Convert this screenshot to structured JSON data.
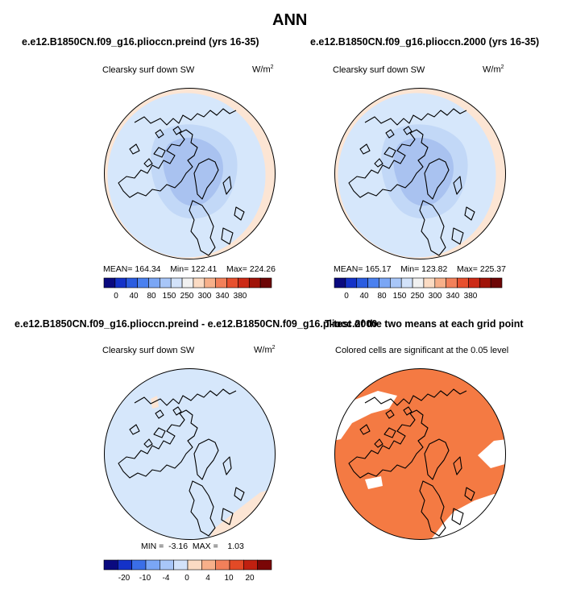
{
  "figure_title": "ANN",
  "colors": {
    "pale_blue": "#d6e7fb",
    "light_blue": "#c2d8f7",
    "mid_blue": "#a9c2f0",
    "peach": "#fce5d4",
    "orange": "#f47a43",
    "coast": "#000000"
  },
  "chart_data": [
    {
      "type": "heatmap",
      "projection": "north polar stereographic",
      "title": "e.e12.B1850CN.f09_g16.plioccn.preind (yrs 16-35)",
      "subtitle": "Clearsky surf down SW",
      "units": "W/m",
      "units_sup": "2",
      "mean_label": "MEAN=",
      "mean": "164.34",
      "min_label": "Min=",
      "min": "122.41",
      "max_label": "Max=",
      "max": "224.26",
      "colorbar_ticks": [
        "0",
        "40",
        "80",
        "150",
        "250",
        "300",
        "340",
        "380"
      ]
    },
    {
      "type": "heatmap",
      "projection": "north polar stereographic",
      "title": "e.e12.B1850CN.f09_g16.plioccn.2000 (yrs 16-35)",
      "subtitle": "Clearsky surf down SW",
      "units": "W/m",
      "units_sup": "2",
      "mean_label": "MEAN=",
      "mean": "165.17",
      "min_label": "Min=",
      "min": "123.82",
      "max_label": "Max=",
      "max": "225.37",
      "colorbar_ticks": [
        "0",
        "40",
        "80",
        "150",
        "250",
        "300",
        "340",
        "380"
      ]
    },
    {
      "type": "heatmap",
      "projection": "north polar stereographic",
      "title": "e.e12.B1850CN.f09_g16.plioccn.preind - e.e12.B1850CN.f09_g16.pliocc.2000",
      "subtitle": "Clearsky surf down SW",
      "units": "W/m",
      "units_sup": "2",
      "min_label": "MIN =",
      "min": "-3.16",
      "max_label": "MAX =",
      "max": "1.03",
      "colorbar_ticks": [
        "-20",
        "-10",
        "-4",
        "0",
        "4",
        "10",
        "20"
      ]
    },
    {
      "type": "heatmap",
      "projection": "north polar stereographic",
      "title": "T-test of the two means at each grid point",
      "subtitle": "Colored cells are significant at the 0.05 level"
    }
  ],
  "colorbar_abs": [
    "#0a0a7f",
    "#1432c8",
    "#2a5ce0",
    "#4a80ef",
    "#7aa6f5",
    "#a8c6f8",
    "#d2e2fa",
    "#f1f1f1",
    "#fbdbc3",
    "#f7b08a",
    "#f2805a",
    "#e7502e",
    "#cc2a16",
    "#a01308",
    "#6d0606"
  ],
  "colorbar_diff": [
    "#0a0a7f",
    "#1432c8",
    "#3a6ee8",
    "#7aa6f5",
    "#a8c6f8",
    "#d2e2fa",
    "#fbdbc3",
    "#f7b08a",
    "#f2805a",
    "#e34a26",
    "#c02010",
    "#7a0606"
  ]
}
